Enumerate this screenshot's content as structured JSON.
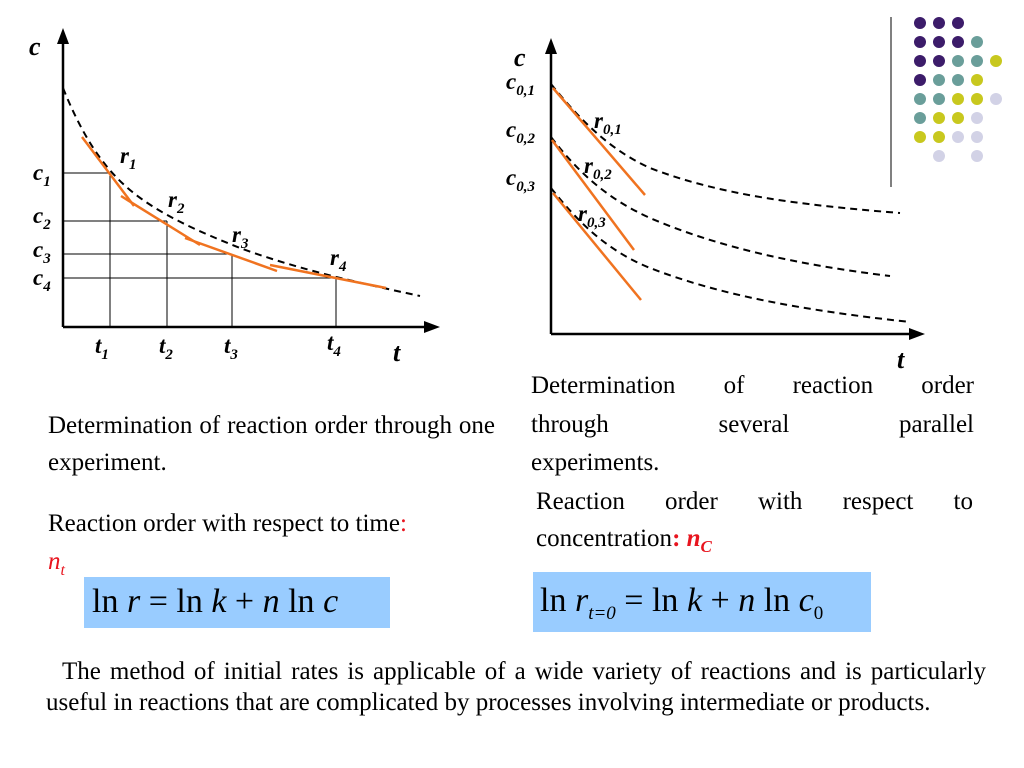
{
  "left_chart": {
    "y_axis_label": "c",
    "x_axis_label": "t",
    "c_labels": [
      "c",
      "c",
      "c",
      "c"
    ],
    "c_subs": [
      "1",
      "2",
      "3",
      "4"
    ],
    "t_labels": [
      "t",
      "t",
      "t",
      "t"
    ],
    "t_subs": [
      "1",
      "2",
      "3",
      "4"
    ],
    "r_labels": [
      "r",
      "r",
      "r",
      "r"
    ],
    "r_subs": [
      "1",
      "2",
      "3",
      "4"
    ]
  },
  "right_chart": {
    "y_axis_label": "c",
    "x_axis_label": "t",
    "c0_labels": [
      "c",
      "c",
      "c"
    ],
    "c0_subs": [
      "0,1",
      "0,2",
      "0,3"
    ],
    "r0_labels": [
      "r",
      "r",
      "r"
    ],
    "r0_subs": [
      "0,1",
      "0,2",
      "0,3"
    ]
  },
  "left_text": {
    "caption": "Determination of reaction order through one experiment.",
    "order_label": "Reaction order with respect to time",
    "order_colon": ":",
    "order_symbol": "n",
    "order_symbol_sub": "t"
  },
  "right_text": {
    "caption_line1": "Determination of reaction order",
    "caption_line2": "through several parallel",
    "caption_line3": "experiments.",
    "order_line1": "Reaction order with respect to",
    "order_line2": "concentration",
    "order_colon": ":",
    "order_symbol": "n",
    "order_symbol_sub": "C"
  },
  "equation_left": {
    "ln1": "ln",
    "r": "r",
    "eq": "=",
    "ln2": "ln",
    "k": "k",
    "plus": "+",
    "n": "n",
    "ln3": "ln",
    "c": "c"
  },
  "equation_right": {
    "ln1": "ln",
    "r": "r",
    "r_sub": "t=0",
    "eq": "=",
    "ln2": "ln",
    "k": "k",
    "plus": "+",
    "n": "n",
    "ln3": "ln",
    "c": "c",
    "c_sub": "0"
  },
  "bottom_paragraph": "The method of initial rates is applicable of a wide variety of reactions and is particularly useful in reactions that are complicated by processes involving intermediate or products.",
  "colors": {
    "tangent": "#f07320",
    "highlight": "#99ccff",
    "red": "#e8141e",
    "dot_purple": "#3c1c6a",
    "dot_teal": "#6a9e9a",
    "dot_yellow": "#c8c81e",
    "dot_lavender": "#d2d2e6"
  }
}
